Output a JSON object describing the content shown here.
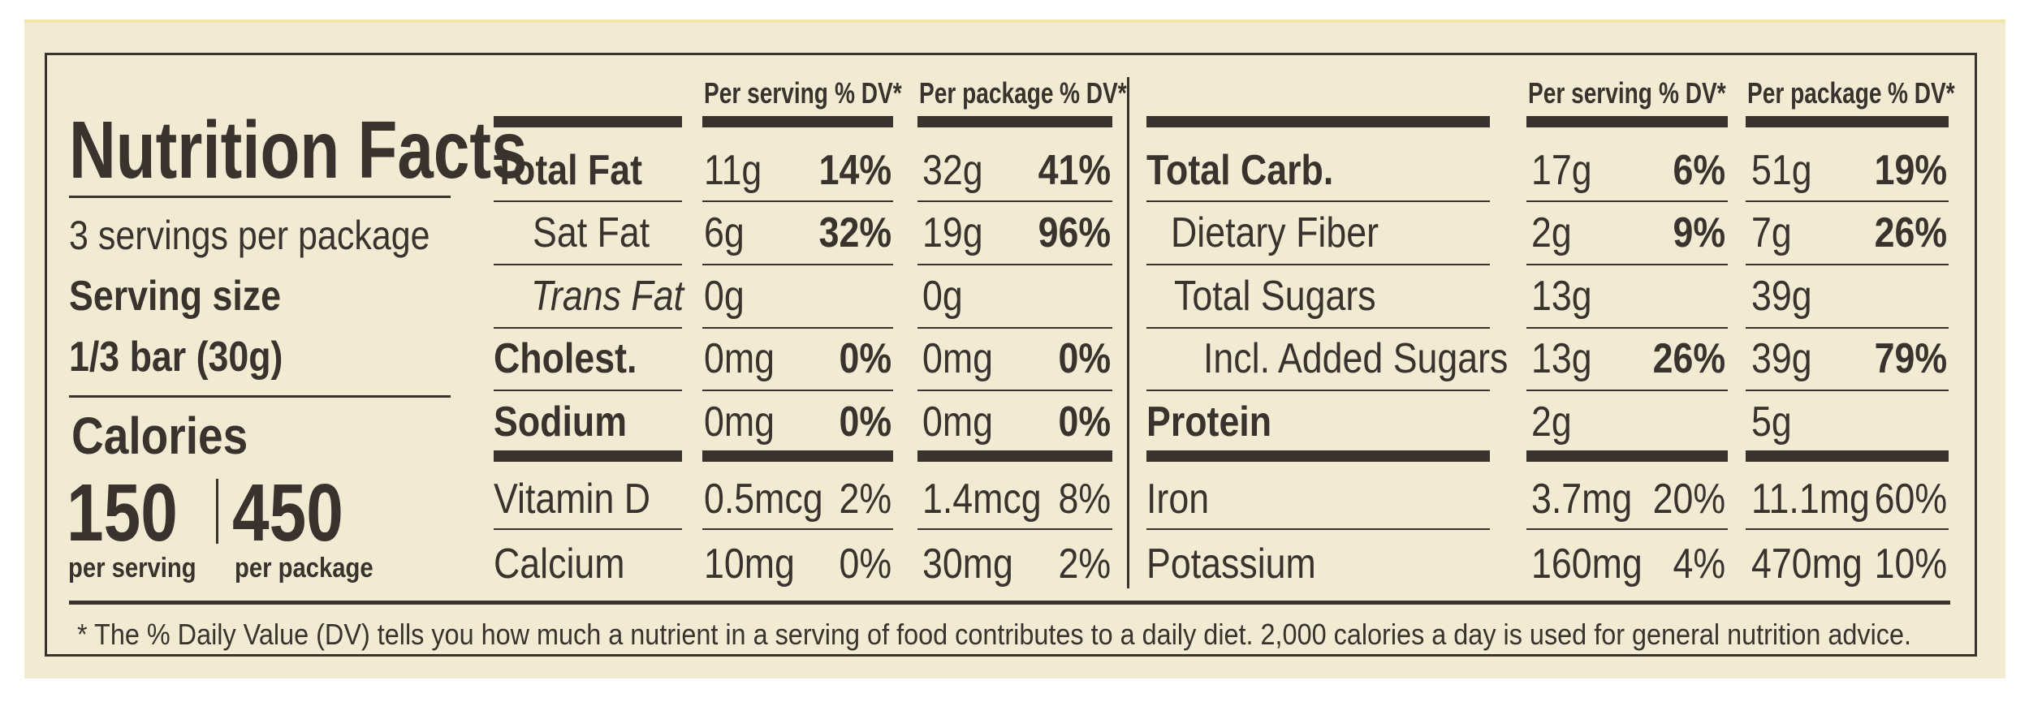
{
  "title": "Nutrition Facts",
  "servings_per_package": "3 servings per package",
  "serving_size": {
    "label": "Serving size",
    "value": "1/3 bar (30g)"
  },
  "calories": {
    "label": "Calories",
    "per_serving": {
      "value": "150",
      "label": "per serving"
    },
    "per_package": {
      "value": "450",
      "label": "per package"
    }
  },
  "tables": [
    {
      "headers": [
        {
          "label": "Per serving",
          "unit": "% DV*"
        },
        {
          "label": "Per package",
          "unit": "% DV*"
        }
      ],
      "rows": [
        {
          "name": "Total Fat",
          "per_serving": {
            "amount": "11g",
            "dv": "14%"
          },
          "per_package": {
            "amount": "32g",
            "dv": "41%"
          }
        },
        {
          "name": "Sat Fat",
          "per_serving": {
            "amount": "6g",
            "dv": "32%"
          },
          "per_package": {
            "amount": "19g",
            "dv": "96%"
          }
        },
        {
          "name": "Trans Fat",
          "per_serving": {
            "amount": "0g"
          },
          "per_package": {
            "amount": "0g"
          }
        },
        {
          "name": "Cholest.",
          "per_serving": {
            "amount": "0mg",
            "dv": "0%"
          },
          "per_package": {
            "amount": "0mg",
            "dv": "0%"
          }
        },
        {
          "name": "Sodium",
          "per_serving": {
            "amount": "0mg",
            "dv": "0%"
          },
          "per_package": {
            "amount": "0mg",
            "dv": "0%"
          }
        }
      ],
      "vitamins": [
        {
          "name": "Vitamin D",
          "per_serving": {
            "amount": "0.5mcg",
            "dv": "2%"
          },
          "per_package": {
            "amount": "1.4mcg",
            "dv": "8%"
          }
        },
        {
          "name": "Calcium",
          "per_serving": {
            "amount": "10mg",
            "dv": "0%"
          },
          "per_package": {
            "amount": "30mg",
            "dv": "2%"
          }
        }
      ]
    },
    {
      "headers": [
        {
          "label": "Per serving",
          "unit": "% DV*"
        },
        {
          "label": "Per package",
          "unit": "% DV*"
        }
      ],
      "rows": [
        {
          "name": "Total Carb.",
          "per_serving": {
            "amount": "17g",
            "dv": "6%"
          },
          "per_package": {
            "amount": "51g",
            "dv": "19%"
          }
        },
        {
          "name": "Dietary Fiber",
          "per_serving": {
            "amount": "2g",
            "dv": "9%"
          },
          "per_package": {
            "amount": "7g",
            "dv": "26%"
          }
        },
        {
          "name": "Total Sugars",
          "per_serving": {
            "amount": "13g"
          },
          "per_package": {
            "amount": "39g"
          }
        },
        {
          "name": "Incl. Added Sugars",
          "per_serving": {
            "amount": "13g",
            "dv": "26%"
          },
          "per_package": {
            "amount": "39g",
            "dv": "79%"
          }
        },
        {
          "name": "Protein",
          "per_serving": {
            "amount": "2g"
          },
          "per_package": {
            "amount": "5g"
          }
        }
      ],
      "vitamins": [
        {
          "name": "Iron",
          "per_serving": {
            "amount": "3.7mg",
            "dv": "20%"
          },
          "per_package": {
            "amount": "11.1mg",
            "dv": "60%"
          }
        },
        {
          "name": "Potassium",
          "per_serving": {
            "amount": "160mg",
            "dv": "4%"
          },
          "per_package": {
            "amount": "470mg",
            "dv": "10%"
          }
        }
      ]
    }
  ],
  "footnote": "* The % Daily Value (DV) tells you how much a nutrient in a serving of food contributes to a daily diet. 2,000 calories a day is used for general nutrition advice."
}
